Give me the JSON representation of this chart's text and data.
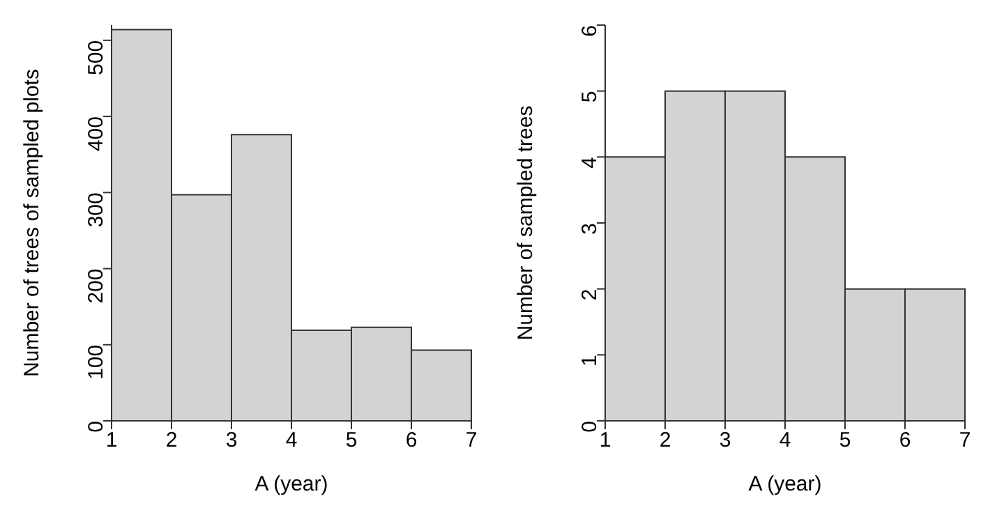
{
  "chart_data": [
    {
      "type": "histogram",
      "xlabel": "A (year)",
      "ylabel": "Number of trees of sampled plots",
      "bins": [
        1,
        2,
        3,
        4,
        5,
        6,
        7
      ],
      "values": [
        514,
        297,
        376,
        119,
        123,
        93
      ],
      "color": "#d3d3d3",
      "xlim": [
        1,
        7
      ],
      "xticks": [
        1,
        2,
        3,
        4,
        5,
        6,
        7
      ],
      "ylim": [
        0,
        520
      ],
      "yticks": [
        0,
        100,
        200,
        300,
        400,
        500
      ],
      "grid": false
    },
    {
      "type": "histogram",
      "xlabel": "A (year)",
      "ylabel": "Number of sampled trees",
      "bins": [
        1,
        2,
        3,
        4,
        5,
        6,
        7
      ],
      "values": [
        4,
        5,
        5,
        4,
        2,
        2
      ],
      "color": "#d3d3d3",
      "xlim": [
        1,
        7
      ],
      "xticks": [
        1,
        2,
        3,
        4,
        5,
        6,
        7
      ],
      "ylim": [
        0,
        6
      ],
      "yticks": [
        0,
        1,
        2,
        3,
        4,
        5,
        6
      ],
      "grid": false
    }
  ]
}
